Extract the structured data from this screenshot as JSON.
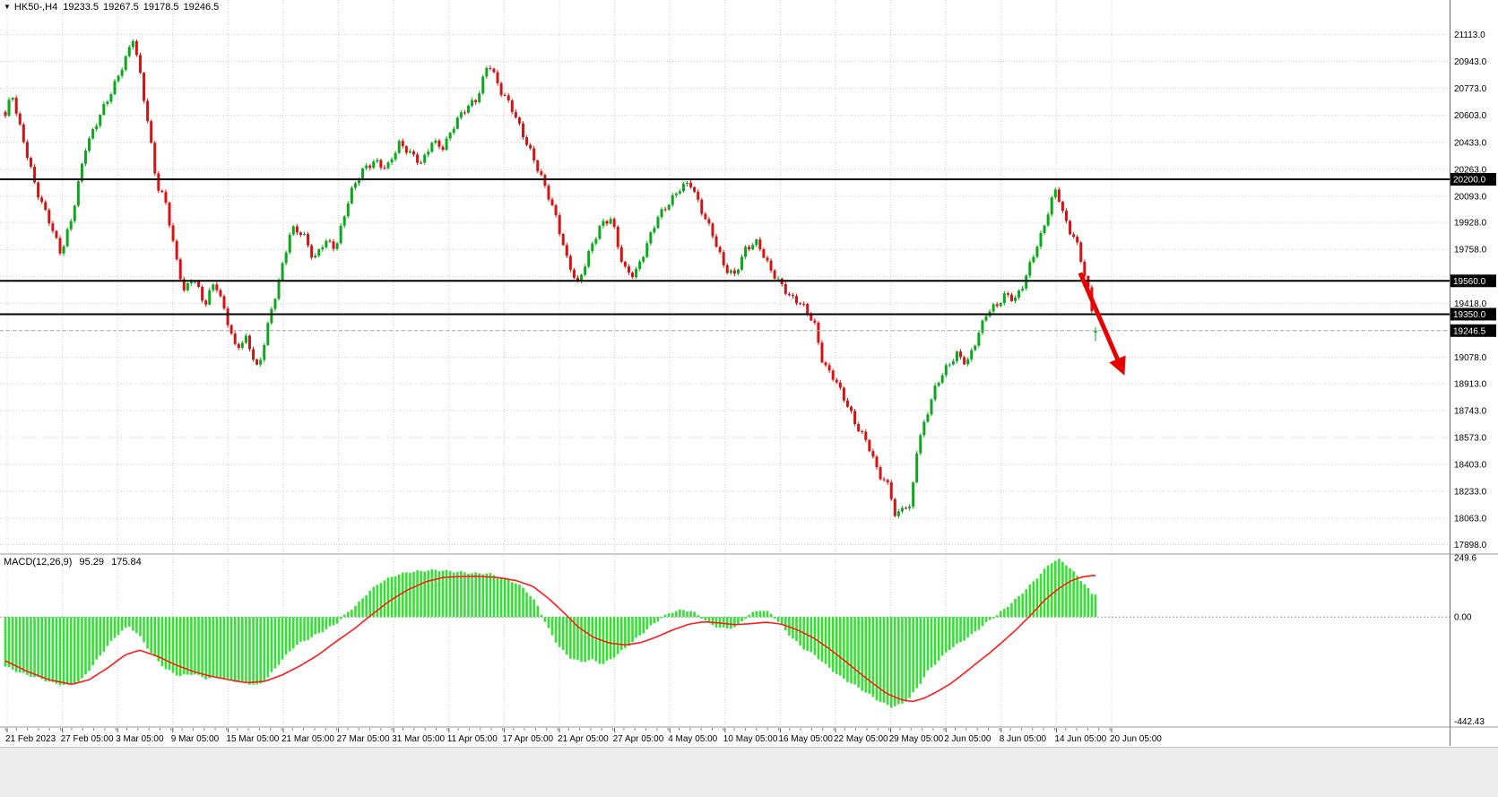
{
  "header": {
    "dropdown_icon": "▼",
    "symbol_timeframe": "HK50-,H4",
    "open": "19233.5",
    "high": "19267.5",
    "low": "19178.5",
    "close": "19246.5"
  },
  "indicator_header": {
    "name": "MACD(12,26,9)",
    "main_value": "95.29",
    "signal_value": "175.84"
  },
  "price_axis": {
    "labels": [
      "21113.0",
      "20943.0",
      "20773.0",
      "20603.0",
      "20433.0",
      "20263.0",
      "20093.0",
      "19928.0",
      "19758.0",
      "19418.0",
      "19078.0",
      "18913.0",
      "18743.0",
      "18573.0",
      "18403.0",
      "18233.0",
      "18063.0",
      "17898.0"
    ],
    "hidden_gridline_prices": [
      19588,
      19248
    ],
    "tags": [
      {
        "label": "20200.0",
        "price": 20200
      },
      {
        "label": "19560.0",
        "price": 19560
      },
      {
        "label": "19350.0",
        "price": 19350
      }
    ],
    "current_price_tag": {
      "label": "19246.5",
      "price": 19246.5
    }
  },
  "time_axis": {
    "labels": [
      "21 Feb 2023",
      "27 Feb 05:00",
      "3 Mar 05:00",
      "9 Mar 05:00",
      "15 Mar 05:00",
      "21 Mar 05:00",
      "27 Mar 05:00",
      "31 Mar 05:00",
      "11 Apr 05:00",
      "17 Apr 05:00",
      "21 Apr 05:00",
      "27 Apr 05:00",
      "4 May 05:00",
      "10 May 05:00",
      "16 May 05:00",
      "22 May 05:00",
      "29 May 05:00",
      "2 Jun 05:00",
      "8 Jun 05:00",
      "14 Jun 05:00",
      "20 Jun 05:00"
    ]
  },
  "chart_data": {
    "type": "candlestick",
    "symbol": "HK50-",
    "timeframe": "H4",
    "title": "HK50-,H4",
    "last_bar": {
      "open": 19233.5,
      "high": 19267.5,
      "low": 19178.5,
      "close": 19246.5
    },
    "ylim": [
      17844,
      21330
    ],
    "horizontal_lines": [
      {
        "price": 20200
      },
      {
        "price": 19560
      },
      {
        "price": 19350
      }
    ],
    "current_price": 19246.5,
    "price_path": [
      [
        0,
        20600
      ],
      [
        0.006,
        20740
      ],
      [
        0.012,
        20550
      ],
      [
        0.028,
        20150
      ],
      [
        0.04,
        19950
      ],
      [
        0.051,
        19720
      ],
      [
        0.061,
        19950
      ],
      [
        0.073,
        20400
      ],
      [
        0.086,
        20600
      ],
      [
        0.098,
        20750
      ],
      [
        0.11,
        20950
      ],
      [
        0.117,
        21100
      ],
      [
        0.123,
        20900
      ],
      [
        0.131,
        20550
      ],
      [
        0.139,
        20150
      ],
      [
        0.147,
        20050
      ],
      [
        0.155,
        19750
      ],
      [
        0.164,
        19500
      ],
      [
        0.172,
        19600
      ],
      [
        0.183,
        19400
      ],
      [
        0.192,
        19550
      ],
      [
        0.202,
        19350
      ],
      [
        0.211,
        19150
      ],
      [
        0.221,
        19200
      ],
      [
        0.232,
        18980
      ],
      [
        0.24,
        19250
      ],
      [
        0.252,
        19600
      ],
      [
        0.262,
        19900
      ],
      [
        0.273,
        19850
      ],
      [
        0.283,
        19680
      ],
      [
        0.293,
        19820
      ],
      [
        0.303,
        19780
      ],
      [
        0.316,
        20100
      ],
      [
        0.328,
        20250
      ],
      [
        0.339,
        20320
      ],
      [
        0.35,
        20280
      ],
      [
        0.361,
        20420
      ],
      [
        0.372,
        20350
      ],
      [
        0.382,
        20300
      ],
      [
        0.391,
        20450
      ],
      [
        0.402,
        20400
      ],
      [
        0.413,
        20550
      ],
      [
        0.423,
        20650
      ],
      [
        0.433,
        20720
      ],
      [
        0.443,
        20950
      ],
      [
        0.454,
        20750
      ],
      [
        0.464,
        20650
      ],
      [
        0.474,
        20500
      ],
      [
        0.484,
        20350
      ],
      [
        0.495,
        20150
      ],
      [
        0.505,
        19950
      ],
      [
        0.515,
        19700
      ],
      [
        0.525,
        19550
      ],
      [
        0.536,
        19750
      ],
      [
        0.546,
        19900
      ],
      [
        0.556,
        19950
      ],
      [
        0.567,
        19650
      ],
      [
        0.577,
        19600
      ],
      [
        0.587,
        19750
      ],
      [
        0.598,
        19950
      ],
      [
        0.608,
        20050
      ],
      [
        0.618,
        20150
      ],
      [
        0.628,
        20180
      ],
      [
        0.638,
        20000
      ],
      [
        0.649,
        19850
      ],
      [
        0.66,
        19650
      ],
      [
        0.669,
        19600
      ],
      [
        0.679,
        19750
      ],
      [
        0.69,
        19800
      ],
      [
        0.701,
        19650
      ],
      [
        0.711,
        19550
      ],
      [
        0.72,
        19450
      ],
      [
        0.731,
        19400
      ],
      [
        0.742,
        19300
      ],
      [
        0.75,
        19050
      ],
      [
        0.76,
        18950
      ],
      [
        0.77,
        18800
      ],
      [
        0.78,
        18650
      ],
      [
        0.791,
        18550
      ],
      [
        0.801,
        18350
      ],
      [
        0.811,
        18250
      ],
      [
        0.817,
        18040
      ],
      [
        0.824,
        18150
      ],
      [
        0.83,
        18120
      ],
      [
        0.836,
        18500
      ],
      [
        0.844,
        18700
      ],
      [
        0.854,
        18900
      ],
      [
        0.863,
        19000
      ],
      [
        0.873,
        19100
      ],
      [
        0.882,
        19050
      ],
      [
        0.891,
        19200
      ],
      [
        0.9,
        19350
      ],
      [
        0.91,
        19400
      ],
      [
        0.918,
        19480
      ],
      [
        0.926,
        19450
      ],
      [
        0.934,
        19550
      ],
      [
        0.942,
        19700
      ],
      [
        0.951,
        19850
      ],
      [
        0.959,
        20050
      ],
      [
        0.964,
        20150
      ],
      [
        0.97,
        20000
      ],
      [
        0.975,
        19900
      ],
      [
        0.982,
        19820
      ],
      [
        0.988,
        19650
      ],
      [
        0.993,
        19500
      ],
      [
        0.997,
        19350
      ],
      [
        1,
        19246.5
      ]
    ],
    "annotations": [
      {
        "type": "arrow",
        "from": {
          "t": 0.986,
          "price": 19610
        },
        "to": {
          "t": 1.025,
          "price": 18990
        }
      }
    ],
    "indicator": {
      "type": "MACD",
      "params": [
        12,
        26,
        9
      ],
      "last_main": 95.29,
      "last_signal": 175.84,
      "axis_labels": [
        {
          "label": "249.6",
          "value": 249.6
        },
        {
          "label": "0.00",
          "value": 0
        },
        {
          "label": "-442.43",
          "value": -442.43
        }
      ],
      "ylim": [
        -462,
        263
      ],
      "histogram_path": [
        [
          0,
          -210
        ],
        [
          0.016,
          -240
        ],
        [
          0.032,
          -260
        ],
        [
          0.044,
          -280
        ],
        [
          0.057,
          -290
        ],
        [
          0.069,
          -270
        ],
        [
          0.081,
          -200
        ],
        [
          0.094,
          -120
        ],
        [
          0.106,
          -60
        ],
        [
          0.114,
          -40
        ],
        [
          0.123,
          -80
        ],
        [
          0.135,
          -160
        ],
        [
          0.147,
          -220
        ],
        [
          0.16,
          -250
        ],
        [
          0.172,
          -240
        ],
        [
          0.184,
          -260
        ],
        [
          0.197,
          -255
        ],
        [
          0.209,
          -270
        ],
        [
          0.221,
          -280
        ],
        [
          0.232,
          -290
        ],
        [
          0.242,
          -250
        ],
        [
          0.254,
          -180
        ],
        [
          0.266,
          -120
        ],
        [
          0.279,
          -90
        ],
        [
          0.291,
          -60
        ],
        [
          0.303,
          -30
        ],
        [
          0.314,
          20
        ],
        [
          0.324,
          60
        ],
        [
          0.334,
          110
        ],
        [
          0.345,
          150
        ],
        [
          0.357,
          175
        ],
        [
          0.369,
          190
        ],
        [
          0.382,
          195
        ],
        [
          0.394,
          200
        ],
        [
          0.406,
          195
        ],
        [
          0.419,
          190
        ],
        [
          0.431,
          185
        ],
        [
          0.443,
          185
        ],
        [
          0.454,
          170
        ],
        [
          0.466,
          150
        ],
        [
          0.476,
          120
        ],
        [
          0.487,
          60
        ],
        [
          0.497,
          -40
        ],
        [
          0.507,
          -120
        ],
        [
          0.517,
          -170
        ],
        [
          0.528,
          -190
        ],
        [
          0.538,
          -180
        ],
        [
          0.548,
          -200
        ],
        [
          0.558,
          -170
        ],
        [
          0.569,
          -130
        ],
        [
          0.579,
          -90
        ],
        [
          0.589,
          -50
        ],
        [
          0.6,
          -10
        ],
        [
          0.61,
          20
        ],
        [
          0.62,
          30
        ],
        [
          0.63,
          25
        ],
        [
          0.641,
          -10
        ],
        [
          0.651,
          -40
        ],
        [
          0.661,
          -50
        ],
        [
          0.671,
          -40
        ],
        [
          0.682,
          10
        ],
        [
          0.692,
          30
        ],
        [
          0.701,
          20
        ],
        [
          0.711,
          -30
        ],
        [
          0.72,
          -80
        ],
        [
          0.731,
          -130
        ],
        [
          0.742,
          -160
        ],
        [
          0.752,
          -200
        ],
        [
          0.762,
          -240
        ],
        [
          0.772,
          -270
        ],
        [
          0.783,
          -300
        ],
        [
          0.793,
          -330
        ],
        [
          0.803,
          -360
        ],
        [
          0.813,
          -380
        ],
        [
          0.822,
          -370
        ],
        [
          0.83,
          -340
        ],
        [
          0.838,
          -290
        ],
        [
          0.846,
          -230
        ],
        [
          0.857,
          -180
        ],
        [
          0.865,
          -140
        ],
        [
          0.875,
          -110
        ],
        [
          0.885,
          -80
        ],
        [
          0.893,
          -50
        ],
        [
          0.901,
          -20
        ],
        [
          0.91,
          10
        ],
        [
          0.918,
          40
        ],
        [
          0.928,
          80
        ],
        [
          0.939,
          130
        ],
        [
          0.949,
          180
        ],
        [
          0.959,
          230
        ],
        [
          0.966,
          245
        ],
        [
          0.974,
          220
        ],
        [
          0.982,
          180
        ],
        [
          0.99,
          140
        ],
        [
          0.997,
          95.29
        ]
      ],
      "signal_path": [
        [
          0,
          -185
        ],
        [
          0.02,
          -230
        ],
        [
          0.04,
          -265
        ],
        [
          0.061,
          -285
        ],
        [
          0.077,
          -265
        ],
        [
          0.094,
          -215
        ],
        [
          0.11,
          -160
        ],
        [
          0.123,
          -140
        ],
        [
          0.139,
          -165
        ],
        [
          0.155,
          -200
        ],
        [
          0.172,
          -230
        ],
        [
          0.188,
          -250
        ],
        [
          0.205,
          -265
        ],
        [
          0.221,
          -278
        ],
        [
          0.238,
          -272
        ],
        [
          0.254,
          -245
        ],
        [
          0.271,
          -205
        ],
        [
          0.287,
          -160
        ],
        [
          0.303,
          -105
        ],
        [
          0.32,
          -50
        ],
        [
          0.336,
          10
        ],
        [
          0.353,
          70
        ],
        [
          0.369,
          115
        ],
        [
          0.386,
          150
        ],
        [
          0.402,
          168
        ],
        [
          0.419,
          172
        ],
        [
          0.435,
          172
        ],
        [
          0.451,
          168
        ],
        [
          0.468,
          155
        ],
        [
          0.484,
          130
        ],
        [
          0.498,
          80
        ],
        [
          0.512,
          20
        ],
        [
          0.525,
          -40
        ],
        [
          0.539,
          -85
        ],
        [
          0.554,
          -110
        ],
        [
          0.569,
          -118
        ],
        [
          0.583,
          -108
        ],
        [
          0.597,
          -85
        ],
        [
          0.612,
          -55
        ],
        [
          0.627,
          -30
        ],
        [
          0.641,
          -20
        ],
        [
          0.655,
          -25
        ],
        [
          0.669,
          -32
        ],
        [
          0.684,
          -28
        ],
        [
          0.698,
          -22
        ],
        [
          0.712,
          -30
        ],
        [
          0.727,
          -55
        ],
        [
          0.742,
          -90
        ],
        [
          0.756,
          -135
        ],
        [
          0.77,
          -185
        ],
        [
          0.783,
          -235
        ],
        [
          0.797,
          -285
        ],
        [
          0.809,
          -325
        ],
        [
          0.822,
          -350
        ],
        [
          0.832,
          -358
        ],
        [
          0.842,
          -345
        ],
        [
          0.854,
          -318
        ],
        [
          0.867,
          -282
        ],
        [
          0.879,
          -240
        ],
        [
          0.891,
          -195
        ],
        [
          0.904,
          -148
        ],
        [
          0.916,
          -100
        ],
        [
          0.928,
          -50
        ],
        [
          0.941,
          10
        ],
        [
          0.953,
          70
        ],
        [
          0.966,
          120
        ],
        [
          0.978,
          155
        ],
        [
          0.988,
          170
        ],
        [
          0.997,
          175.84
        ]
      ]
    }
  },
  "colors": {
    "background": "#ffffff",
    "grid": "#cdcdcd",
    "bull": "#0ca81c",
    "bear": "#d41414",
    "macd_histogram": "#35e035",
    "macd_signal": "#ff1a1a",
    "hline": "#000000",
    "tag_bg": "#000000",
    "tag_text": "#ffffff",
    "axis_text": "#000000",
    "arrow": "#e60000",
    "separator": "#9a9a9a"
  }
}
